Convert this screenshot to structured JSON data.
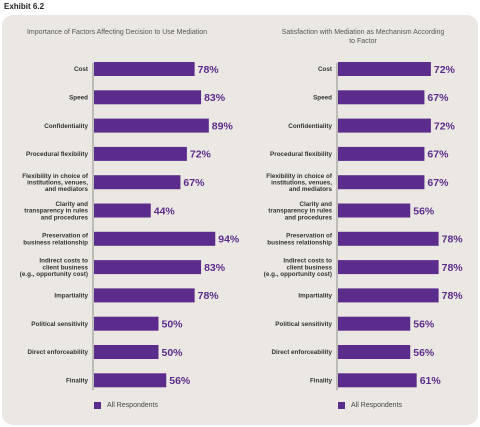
{
  "exhibit_label": "Exhibit 6.2",
  "colors": {
    "bar": "#5b2c8b",
    "value_text": "#5b2c8b",
    "panel": "#ebe8e3",
    "axis": "#777777"
  },
  "chart_data": [
    {
      "type": "bar",
      "orientation": "horizontal",
      "title": "Importance of Factors Affecting Decision to Use Mediation",
      "categories": [
        "Cost",
        "Speed",
        "Confidentiality",
        "Procedural flexibility",
        "Flexibility in choice of institutions, venues, and mediators",
        "Clarity and transparency in rules and procedures",
        "Preservation of business relationship",
        "Indirect costs to client business (e.g., opportunity cost)",
        "Impartiality",
        "Political sensitivity",
        "Direct enforceability",
        "Finality"
      ],
      "category_lines": [
        [
          "Cost"
        ],
        [
          "Speed"
        ],
        [
          "Confidentiality"
        ],
        [
          "Procedural flexibility"
        ],
        [
          "Flexibility in choice of",
          "institutions, venues,",
          "and mediators"
        ],
        [
          "Clarity and",
          "transparency in rules",
          "and procedures"
        ],
        [
          "Preservation of",
          "business relationship"
        ],
        [
          "Indirect costs to",
          "client business",
          "(e.g., opportunity cost)"
        ],
        [
          "Impartiality"
        ],
        [
          "Political sensitivity"
        ],
        [
          "Direct enforceability"
        ],
        [
          "Finality"
        ]
      ],
      "series": [
        {
          "name": "All Respondents",
          "values": [
            78,
            83,
            89,
            72,
            67,
            44,
            94,
            83,
            78,
            50,
            50,
            56
          ]
        }
      ],
      "value_labels": [
        "78%",
        "83%",
        "89%",
        "72%",
        "67%",
        "44%",
        "94%",
        "83%",
        "78%",
        "50%",
        "50%",
        "56%"
      ],
      "xlim": [
        0,
        100
      ],
      "legend_label": "All Respondents",
      "legend_position": "bottom"
    },
    {
      "type": "bar",
      "orientation": "horizontal",
      "title": "Satisfaction with Mediation as Mechanism According to Factor",
      "title_lines": [
        "Satisfaction with Mediation as Mechanism According",
        "to Factor"
      ],
      "categories": [
        "Cost",
        "Speed",
        "Confidentiality",
        "Procedural flexibility",
        "Flexibility in choice of institutions, venues, and mediators",
        "Clarity and transparency in rules and procedures",
        "Preservation of business relationship",
        "Indirect costs to client business (e.g., opportunity cost)",
        "Impartiality",
        "Political sensitivity",
        "Direct enforceability",
        "Finality"
      ],
      "category_lines": [
        [
          "Cost"
        ],
        [
          "Speed"
        ],
        [
          "Confidentiality"
        ],
        [
          "Procedural flexibility"
        ],
        [
          "Flexibility in choice of",
          "institutions, venues,",
          "and mediators"
        ],
        [
          "Clarity and",
          "transparency in rules",
          "and procedures"
        ],
        [
          "Preservation of",
          "business relationship"
        ],
        [
          "Indirect costs to",
          "client business",
          "(e.g., opportunity cost)"
        ],
        [
          "Impartiality"
        ],
        [
          "Political sensitivity"
        ],
        [
          "Direct enforceability"
        ],
        [
          "Finality"
        ]
      ],
      "series": [
        {
          "name": "All Respondents",
          "values": [
            72,
            67,
            72,
            67,
            67,
            56,
            78,
            78,
            78,
            56,
            56,
            61
          ]
        }
      ],
      "value_labels": [
        "72%",
        "67%",
        "72%",
        "67%",
        "67%",
        "56%",
        "78%",
        "78%",
        "78%",
        "56%",
        "56%",
        "61%"
      ],
      "xlim": [
        0,
        100
      ],
      "legend_label": "All Respondents",
      "legend_position": "bottom"
    }
  ]
}
